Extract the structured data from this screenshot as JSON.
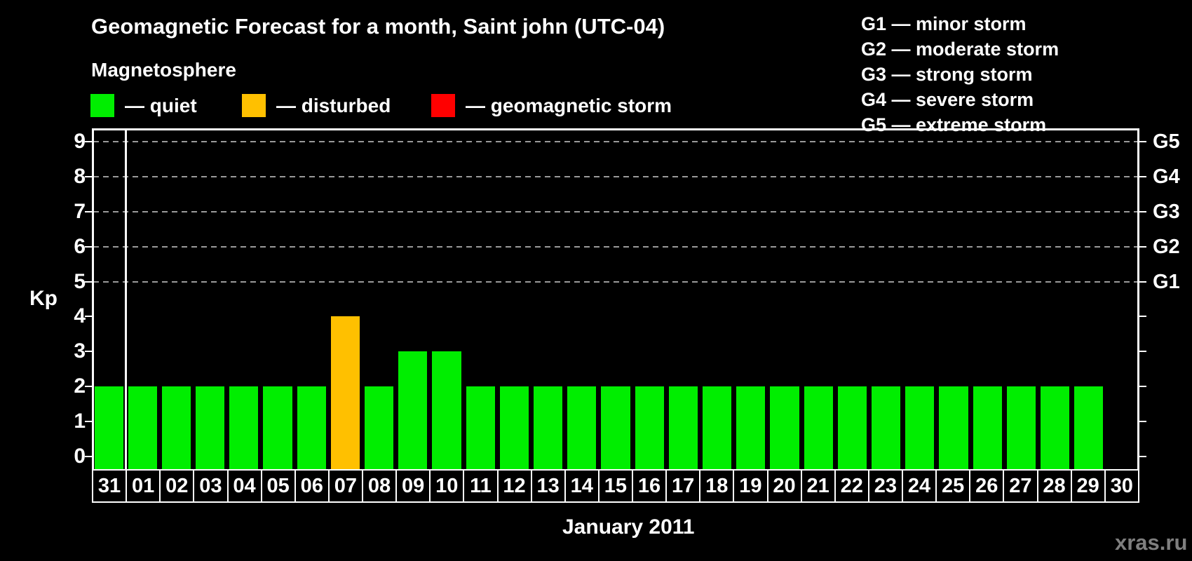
{
  "title": "Geomagnetic Forecast for a month, Saint john (UTC-04)",
  "section_label": "Magnetosphere",
  "legend": {
    "items": [
      {
        "name": "quiet",
        "label": "— quiet",
        "color": "#00ee00"
      },
      {
        "name": "disturbed",
        "label": "— disturbed",
        "color": "#ffc000"
      },
      {
        "name": "storm",
        "label": "— geomagnetic storm",
        "color": "#ff0000"
      }
    ]
  },
  "g_legend": {
    "items": [
      "G1 — minor storm",
      "G2 — moderate storm",
      "G3 — strong storm",
      "G4 — severe storm",
      "G5 — extreme storm"
    ]
  },
  "watermark": "xras.ru",
  "chart_data": {
    "type": "bar",
    "title": "Geomagnetic Forecast for a month, Saint john (UTC-04)",
    "xlabel": "January 2011",
    "ylabel": "Kp",
    "ylim": [
      -0.36,
      9.36
    ],
    "yticks": [
      0,
      1,
      2,
      3,
      4,
      5,
      6,
      7,
      8,
      9
    ],
    "grid": "horizontal dashed lines at Kp 5-9 only",
    "legend_position": "top-left",
    "right_axis_labels": [
      {
        "kp": 5,
        "label": "G1"
      },
      {
        "kp": 6,
        "label": "G2"
      },
      {
        "kp": 7,
        "label": "G3"
      },
      {
        "kp": 8,
        "label": "G4"
      },
      {
        "kp": 9,
        "label": "G5"
      }
    ],
    "gridline_levels": [
      5,
      6,
      7,
      8,
      9
    ],
    "categories": [
      "31",
      "01",
      "02",
      "03",
      "04",
      "05",
      "06",
      "07",
      "08",
      "09",
      "10",
      "11",
      "12",
      "13",
      "14",
      "15",
      "16",
      "17",
      "18",
      "19",
      "20",
      "21",
      "22",
      "23",
      "24",
      "25",
      "26",
      "27",
      "28",
      "29",
      "30"
    ],
    "values": [
      2,
      2,
      2,
      2,
      2,
      2,
      2,
      4,
      2,
      3,
      3,
      2,
      2,
      2,
      2,
      2,
      2,
      2,
      2,
      2,
      2,
      2,
      2,
      2,
      2,
      2,
      2,
      2,
      2,
      2,
      null
    ],
    "bar_colors": {
      "quiet": "#00ee00",
      "disturbed": "#ffc000",
      "storm": "#ff0000"
    },
    "disturbed_min_kp": 4,
    "storm_min_kp": 5,
    "month_separator_after": "31",
    "grid_color": "#9a9a9a",
    "axis_color": "#ffffff",
    "background_color": "#000000"
  }
}
